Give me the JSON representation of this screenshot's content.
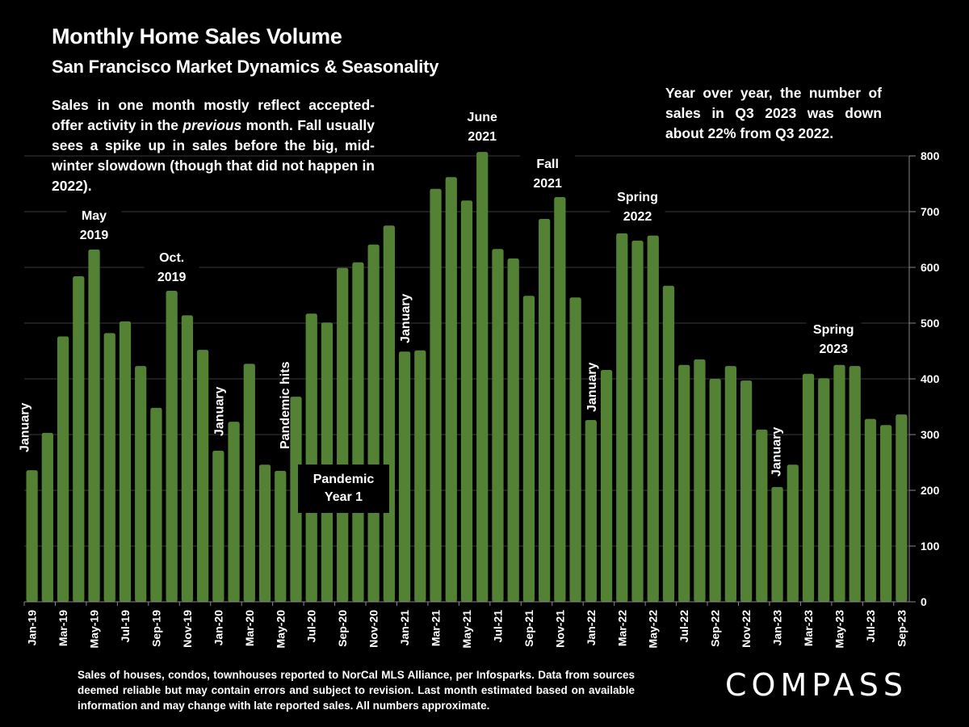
{
  "header": {
    "title": "Monthly Home Sales Volume",
    "subtitle": "San Francisco Market Dynamics & Seasonality"
  },
  "description": {
    "part1": "Sales in one month mostly reflect accepted-offer activity in the ",
    "emphasis": "previous",
    "part2": " month. Fall usually sees a spike up in sales before the big, mid-winter slowdown (though that did not happen in 2022)."
  },
  "yoy_note": "Year over year, the number of sales in Q3 2023 was down about 22% from Q3 2022.",
  "pandemic_box": {
    "line1": "Pandemic",
    "line2": "Year 1"
  },
  "footnote": "Sales of houses, condos, townhouses reported to NorCal MLS Alliance, per Infosparks. Data from sources deemed reliable but may contain errors and subject to revision. Last month estimated based on available information and may change with late reported sales. All numbers approximate.",
  "logo": "COMPASS",
  "colors": {
    "bar": "#548235",
    "background": "#000000",
    "grid": "#3a3a3a",
    "text": "#ffffff"
  },
  "chart_data": {
    "type": "bar",
    "title": "Monthly Home Sales Volume",
    "subtitle": "San Francisco Market Dynamics & Seasonality",
    "xlabel": "",
    "ylabel": "",
    "ylim": [
      0,
      800
    ],
    "yticks": [
      0,
      100,
      200,
      300,
      400,
      500,
      600,
      700,
      800
    ],
    "y_axis_position": "right",
    "grid": true,
    "categories": [
      "Jan-19",
      "Feb-19",
      "Mar-19",
      "Apr-19",
      "May-19",
      "Jun-19",
      "Jul-19",
      "Aug-19",
      "Sep-19",
      "Oct-19",
      "Nov-19",
      "Dec-19",
      "Jan-20",
      "Feb-20",
      "Mar-20",
      "Apr-20",
      "May-20",
      "Jun-20",
      "Jul-20",
      "Aug-20",
      "Sep-20",
      "Oct-20",
      "Nov-20",
      "Dec-20",
      "Jan-21",
      "Feb-21",
      "Mar-21",
      "Apr-21",
      "May-21",
      "Jun-21",
      "Jul-21",
      "Aug-21",
      "Sep-21",
      "Oct-21",
      "Nov-21",
      "Dec-21",
      "Jan-22",
      "Feb-22",
      "Mar-22",
      "Apr-22",
      "May-22",
      "Jun-22",
      "Jul-22",
      "Aug-22",
      "Sep-22",
      "Oct-22",
      "Nov-22",
      "Dec-22",
      "Jan-23",
      "Feb-23",
      "Mar-23",
      "Apr-23",
      "May-23",
      "Jun-23",
      "Jul-23",
      "Aug-23",
      "Sep-23"
    ],
    "xtick_labels": [
      "Jan-19",
      "Mar-19",
      "May-19",
      "Jul-19",
      "Sep-19",
      "Nov-19",
      "Jan-20",
      "Mar-20",
      "May-20",
      "Jul-20",
      "Sep-20",
      "Nov-20",
      "Jan-21",
      "Mar-21",
      "May-21",
      "Jul-21",
      "Sep-21",
      "Nov-21",
      "Jan-22",
      "Mar-22",
      "May-22",
      "Jul-22",
      "Sep-22",
      "Nov-22",
      "Jan-23",
      "Mar-23",
      "May-23",
      "Jul-23",
      "Sep-23"
    ],
    "values": [
      236,
      303,
      476,
      584,
      632,
      482,
      503,
      423,
      348,
      558,
      514,
      452,
      271,
      323,
      427,
      246,
      235,
      368,
      517,
      501,
      599,
      609,
      641,
      675,
      449,
      451,
      741,
      762,
      720,
      807,
      633,
      616,
      549,
      687,
      726,
      546,
      326,
      416,
      661,
      648,
      657,
      567,
      425,
      435,
      400,
      423,
      397,
      309,
      206,
      246,
      409,
      401,
      425,
      423,
      328,
      317,
      336
    ],
    "annotations": [
      {
        "text": "January",
        "at": "Jan-19",
        "rotated": true
      },
      {
        "text": "May 2019",
        "lines": [
          "May",
          "2019"
        ],
        "at": "May-19"
      },
      {
        "text": "Oct. 2019",
        "lines": [
          "Oct.",
          "2019"
        ],
        "at": "Oct-19"
      },
      {
        "text": "January",
        "at": "Jan-20",
        "rotated": true
      },
      {
        "text": "Pandemic hits",
        "at": "Apr-20",
        "rotated": true
      },
      {
        "text": "Pandemic Year 1",
        "at": "Aug-20"
      },
      {
        "text": "January",
        "at": "Jan-21",
        "rotated": true
      },
      {
        "text": "June 2021",
        "lines": [
          "June",
          "2021"
        ],
        "at": "Jun-21"
      },
      {
        "text": "Fall 2021",
        "lines": [
          "Fall",
          "2021"
        ],
        "at": "Oct-21"
      },
      {
        "text": "January",
        "at": "Jan-22",
        "rotated": true
      },
      {
        "text": "Spring 2022",
        "lines": [
          "Spring",
          "2022"
        ],
        "at": "Apr-22"
      },
      {
        "text": "January",
        "at": "Jan-23",
        "rotated": true
      },
      {
        "text": "Spring 2023",
        "lines": [
          "Spring",
          "2023"
        ],
        "at": "Apr-23"
      }
    ]
  }
}
